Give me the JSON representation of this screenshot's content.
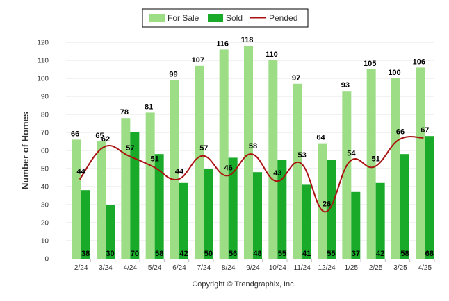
{
  "chart_data": {
    "type": "bar",
    "categories": [
      "2/24",
      "3/24",
      "4/24",
      "5/24",
      "6/24",
      "7/24",
      "8/24",
      "9/24",
      "10/24",
      "11/24",
      "12/24",
      "1/25",
      "2/25",
      "3/25",
      "4/25"
    ],
    "series": [
      {
        "name": "For Sale",
        "kind": "bar",
        "color": "#9ddd85",
        "values": [
          66,
          65,
          78,
          81,
          99,
          107,
          116,
          118,
          110,
          97,
          64,
          93,
          105,
          100,
          106
        ]
      },
      {
        "name": "Sold",
        "kind": "bar",
        "color": "#1aaa2a",
        "values": [
          38,
          30,
          70,
          58,
          42,
          50,
          56,
          48,
          55,
          41,
          55,
          37,
          42,
          58,
          68
        ]
      },
      {
        "name": "Pended",
        "kind": "line",
        "color": "#aa1111",
        "values": [
          44,
          62,
          57,
          51,
          44,
          57,
          46,
          58,
          43,
          53,
          26,
          54,
          51,
          66,
          67
        ]
      }
    ],
    "ylabel": "Number of Homes",
    "ylim": [
      0,
      120
    ],
    "yticks": [
      0,
      10,
      20,
      30,
      40,
      50,
      60,
      70,
      80,
      90,
      100,
      110,
      120
    ],
    "grid": true,
    "legend": "top-center"
  },
  "copyright": "Copyright © Trendgraphix, Inc."
}
